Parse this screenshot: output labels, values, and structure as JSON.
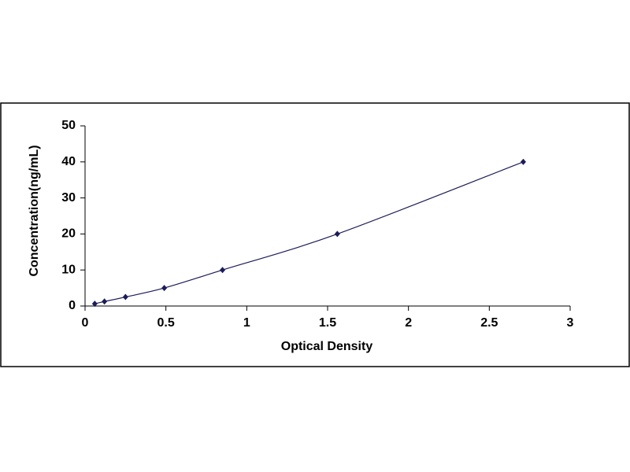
{
  "chart_data": {
    "type": "scatter",
    "smooth_line": true,
    "color": "#1c1c5a",
    "x_label": "Optical Density",
    "y_label": "Concentration(ng/mL)",
    "x": [
      0.06,
      0.12,
      0.25,
      0.49,
      0.85,
      1.56,
      2.71
    ],
    "values": [
      0.625,
      1.25,
      2.5,
      5,
      10,
      20,
      40
    ],
    "xlim": [
      0,
      3
    ],
    "xticks": [
      0,
      0.5,
      1,
      1.5,
      2,
      2.5,
      3
    ],
    "ylim": [
      0,
      50
    ],
    "yticks": [
      0,
      10,
      20,
      30,
      40,
      50
    ],
    "grid": false
  }
}
